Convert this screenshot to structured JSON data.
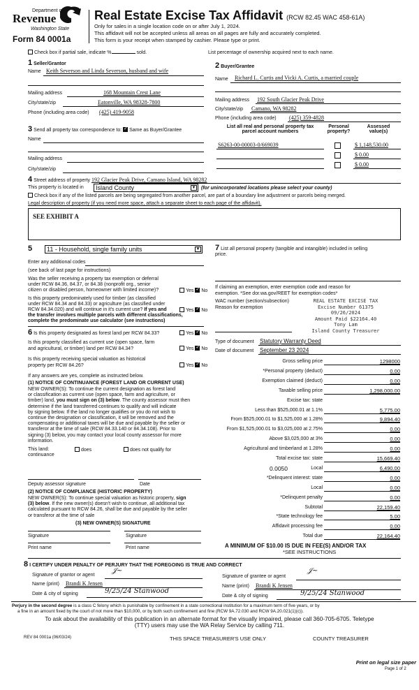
{
  "header": {
    "dept": "Department of",
    "revenue": "Revenue",
    "state": "Washington State",
    "form": "Form 84 0001a",
    "title": "Real Estate Excise Tax Affidavit",
    "rcw": "(RCW 82.45 WAC 458-61A)",
    "line1": "Only for sales in a single location code on or after July 1, 2024.",
    "line2": "This affidavit will not be accepted unless all areas on all pages are fully and accurately completed.",
    "line3": "This form is your receipt when stamped by cashier. Please type or print."
  },
  "partial": {
    "label": "Check box if partial sale, indicate %",
    "sold": "sold.",
    "checked": false
  },
  "ownership_note": "List percentage of ownership acquired next to each name.",
  "seller": {
    "num": "1",
    "title": "Seller/Grantor",
    "name_label": "Name",
    "name": "Keith Severson and Linda Severson, husband and wife",
    "mail_label": "Mailing address",
    "mail": "168 Mountain Crest Lane",
    "city_label": "City/state/zip",
    "city": "Eatonville, WA 98328-7800",
    "phone_label": "Phone (including area code)",
    "phone": "(425) 419-9058"
  },
  "buyer": {
    "num": "2",
    "title": "Buyer/Grantee",
    "name_label": "Name",
    "name": "Richard L. Curtis and Vicki A. Curtis, a married couple",
    "mail_label": "Mailing address",
    "mail": "192 South Glacier Peak Drive",
    "city_label": "City/state/zip",
    "city": "Camano, WA 98282",
    "phone_label": "Phone (including area code)",
    "phone": "(425) 359-4828"
  },
  "correspondence": {
    "num": "3",
    "label": "Send all property tax correspondence to:",
    "same": "Same as Buyer/Grantee",
    "same_checked": true,
    "name_label": "Name",
    "mail_label": "Mailing address",
    "city_label": "City/state/zip"
  },
  "parcels": {
    "h1": "List all real and personal property tax",
    "h1b": "parcel account numbers",
    "h2": "Personal",
    "h2b": "property?",
    "h3": "Assessed",
    "h3b": "value(s)",
    "rows": [
      {
        "number": "S6263-00-00003-0/669039",
        "value": "$ 1,148,530.00"
      },
      {
        "number": "",
        "value": "$ 0.00"
      },
      {
        "number": "",
        "value": "$ 0.00"
      }
    ]
  },
  "property": {
    "num": "4",
    "street_label": "Street address of property",
    "street": "192 Glacier Peak Drive, Camano Island, WA 98282",
    "located_label": "This property is located in",
    "county": "Island County",
    "county_note": "(for unincorporated locations please select your county)",
    "segregate": "Check box if any of the listed parcels are being segregated from another parcel, are part of a boundary line adjustment or parcels being merged.",
    "legal_label": "Legal description of property (if you need more space, attach a separate sheet to each page of the affidavit).",
    "legal": "SEE EXHIBIT A"
  },
  "sec5": {
    "num": "5",
    "use_code": "11 - Household, single family units",
    "codes_label": "Enter any additional codes",
    "see_back": "(see back of last page for instructions)",
    "q1": [
      "Was the seller receiving a property tax exemption or deferral",
      "under RCW 84.36, 84.37, or 84.38 (nonprofit org., senior",
      "citizen or disabled person, homeowner with limited income)?"
    ],
    "q2": [
      "Is this property predominately used for timber (as classified",
      "under RCW 84.34 and 84.33) or agriculture (as classified under",
      "RCW 84.34.020) and will continue in it's current use?"
    ],
    "q2b": [
      " If yes and",
      "the transfer involves multiple parcels with different classifications,",
      "complete the predominate use calculator (see instructions)"
    ],
    "yes": "Yes",
    "no": "No"
  },
  "sec6": {
    "num": "6",
    "q1": "Is this property designated as forest land per RCW 84.33?",
    "q2": [
      "Is this property classified as current use (open space, farm",
      "and agricultural, or timber) land per RCW 84.34?"
    ],
    "q3": [
      "Is this property receiving special valuation as historical",
      "property per RCW 84.26?"
    ],
    "if_yes": "If any answers are yes, complete as instructed below.",
    "n1_title": "(1) NOTICE OF CONTINUANCE (FOREST LAND OR CURRENT USE)",
    "n1_text": [
      "NEW OWNER(S): To continue the current designation as forest land",
      "or classification as current use (open space, farm and agriculture, or",
      "timber) land, you must sign on (3) below. The county assessor must then",
      "determine if the land transferred continues  to qualify and will indicate",
      "by signing below. If the land no longer qualifies or you do not wish to",
      "continue the designation or classification, it will be removed and the",
      "compensating or additional taxes will be due and payable by the seller or",
      "transferor at the time of sale (RCW 84.33.140 or 84.34.108). Prior to",
      "signing (3) below, you may contact your local county assessor for more",
      "information."
    ],
    "this_land": "This land:",
    "continuance": "continuance",
    "does": "does",
    "does_not": "does not qualify for",
    "deputy": "Deputy assessor signature",
    "date": "Date",
    "n2_title": "(2) NOTICE OF COMPLIANCE (HISTORIC PROPERTY)",
    "n2_text": [
      "NEW OWNER(S): To continue special valuation as historic property, sign",
      "(3) below. If the new owner(s) doesn't wish to continue, all additional tax",
      "calculated pursuant to RCW 84.26, shall be due and payable by the seller",
      "or transferor at the time of sale"
    ],
    "n3_title": "(3) NEW OWNER(S) SIGNATURE",
    "signature": "Signature",
    "print_name": "Print name"
  },
  "sec7": {
    "num": "7",
    "label": "List all personal property (tangible and intangible) included in selling",
    "label2": "price.",
    "exempt1": "If claiming an exemption, enter exemption code and reason for",
    "exempt2": "exemption. *See dor.wa.gov/REET for exemption codes*",
    "wac": "WAC number (section/subsection)",
    "reason": "Reason for exemption",
    "stamp": [
      "REAL ESTATE EXCISE TAX",
      "Excise Number 61375",
      "09/26/2024",
      "Amount Paid $22164.40",
      "Tony Lam",
      "Island County Treasurer"
    ],
    "doc_type_label": "Type of document",
    "doc_type": "Statutory Warranty Deed",
    "doc_date_label": "Date of document",
    "doc_date": "September 23 2024"
  },
  "financials": [
    {
      "label": "Gross selling price",
      "value": "1298000"
    },
    {
      "label": "*Personal property (deduct)",
      "value": "0.00"
    },
    {
      "label": "Exemption claimed (deduct)",
      "value": "0.00"
    },
    {
      "label": "Taxable selling price",
      "value": "1,298,000.00"
    },
    {
      "label": "Excise tax: state",
      "value": null
    },
    {
      "label": "Less than $525,000.01 at 1.1%",
      "value": "5,775.00"
    },
    {
      "label": "From $525,000.01 to $1,525,000 at 1.28%",
      "value": "9,894.40"
    },
    {
      "label": "From $1,525,000.01 to $3,025,000 at 2.75%",
      "value": "0.00"
    },
    {
      "label": "Above $3,025,000 at 3%",
      "value": "0.00"
    },
    {
      "label": "Agricultural and timberland at 1.28%",
      "value": "0.00"
    },
    {
      "label": "Total excise tax: state",
      "value": "15,669.40"
    },
    {
      "label": "Local",
      "value": "6,490.00",
      "rate": "0.0050"
    },
    {
      "label": "*Delinquent interest: state",
      "value": "0.00"
    },
    {
      "label": "Local",
      "value": "0.00"
    },
    {
      "label": "*Delinquent penalty",
      "value": "0.00"
    },
    {
      "label": "Subtotal",
      "value": "22,159.40"
    },
    {
      "label": "*State technology fee",
      "value": "5.00"
    },
    {
      "label": "Affidavit processing fee",
      "value": "0.00"
    },
    {
      "label": "Total due",
      "value": "22,164.40"
    }
  ],
  "minimum": "A MINIMUM OF $10.00 IS DUE IN FEE(S) AND/OR TAX",
  "see_instr": "*SEE INSTRUCTIONS",
  "sec8": {
    "num": "8",
    "title": "I CERTIFY UNDER PENALTY OF PERJURY THAT THE FOREGOING IS TRUE AND CORRECT",
    "grantor_sig": "Signature of grantor or agent",
    "grantee_sig": "Signature of grantee or agent",
    "name_label": "Name (print)",
    "grantor_name": "Brandi K Jensen",
    "grantee_name": "Brandi K Jensen",
    "date_label": "Date & city of signing",
    "grantor_date": "9/25/24 Stanwood",
    "grantee_date": "9/25/24 Stanwood"
  },
  "perjury_bold": "Perjury in the second degree",
  "perjury": " is a class C felony which is punishable by confinement in a state correctional institution for a maximum term of five years, or by",
  "perjury2": "a fine in an amount fixed by the court of not more than $10,000, or by both such confinement and fine (RCW 9A.72.030 and RCW 9A.20.021(1)(c)).",
  "ask1": "To ask about the availability of this publication in an alternate format for the visually impaired, please call 360-705-6705. Teletype",
  "ask2": "(TTY) users may use the WA Relay Service by calling 711.",
  "footer": {
    "rev": "REV 84 0001a (06/03/24)",
    "treasurer_use": "THIS SPACE TREASURER'S USE ONLY",
    "county_treasurer": "COUNTY TREASURER",
    "legal_paper": "Print on legal size paper",
    "page": "Page 1 of 2"
  }
}
